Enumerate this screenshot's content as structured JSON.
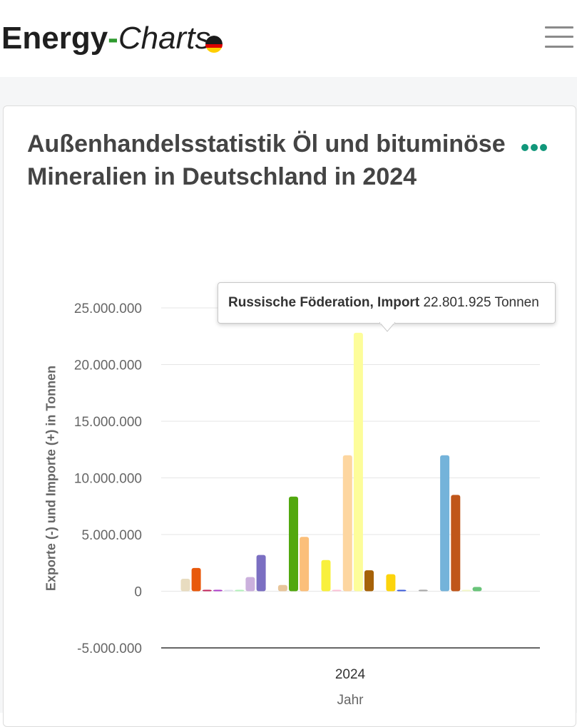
{
  "header": {
    "logo_part1": "Energy",
    "logo_dash": "-",
    "logo_part2": "Charts",
    "flag_icon": "germany-flag-icon",
    "menu_icon": "hamburger-menu-icon"
  },
  "card": {
    "title": "Außenhandelsstatistik Öl und bituminöse Mineralien in Deutschland in 2024",
    "menu_icon": "more-dots-icon",
    "menu_color": "#11977a"
  },
  "tooltip": {
    "series": "Russische Föderation, Import",
    "value": "22.801.925 Tonnen"
  },
  "chart_data": {
    "type": "bar",
    "title": "Außenhandelsstatistik Öl und bituminöse Mineralien in Deutschland in 2024",
    "categories": [
      "2024"
    ],
    "xlabel": "Jahr",
    "ylabel": "Exporte (-) und Importe (+) in Tonnen",
    "ylim": [
      -5000000,
      25000000
    ],
    "yticks": [
      -5000000,
      0,
      5000000,
      10000000,
      15000000,
      20000000,
      25000000
    ],
    "ytick_labels": [
      "-5.000.000",
      "0",
      "5.000.000",
      "10.000.000",
      "15.000.000",
      "20.000.000",
      "25.000.000"
    ],
    "grid": true,
    "highlighted_series_index": 18,
    "series": [
      {
        "value": 1100000,
        "color": "#e8dcc0"
      },
      {
        "value": 2050000,
        "color": "#e8590c"
      },
      {
        "value": 80000,
        "color": "#c2255c"
      },
      {
        "value": 80000,
        "color": "#ae3ec9"
      },
      {
        "value": 30000,
        "color": "#e0e0f0"
      },
      {
        "value": 30000,
        "color": "#b2f2bb"
      },
      {
        "value": 1250000,
        "color": "#cbb0dd"
      },
      {
        "value": 3200000,
        "color": "#7b6fc2"
      },
      {
        "value": null,
        "color": "#ffffff"
      },
      {
        "value": 550000,
        "color": "#e8c59a"
      },
      {
        "value": 8350000,
        "color": "#52a80f"
      },
      {
        "value": 4800000,
        "color": "#fbbf7a"
      },
      {
        "value": null,
        "color": "#ffffff"
      },
      {
        "value": 2750000,
        "color": "#f8f03c"
      },
      {
        "value": 40000,
        "color": "#fcc2d7"
      },
      {
        "value": 12000000,
        "color": "#fdd6a0"
      },
      {
        "value": 22801925,
        "name": "Russische Föderation, Import",
        "color": "#fdfd9a"
      },
      {
        "value": 1850000,
        "color": "#a66208"
      },
      {
        "value": null,
        "color": "#ffffff"
      },
      {
        "value": 1500000,
        "color": "#fcd40c"
      },
      {
        "value": 80000,
        "color": "#3b5bdb"
      },
      {
        "value": null,
        "color": "#ffffff"
      },
      {
        "value": 130000,
        "color": "#a8a8a8"
      },
      {
        "value": null,
        "color": "#ffffff"
      },
      {
        "value": 12000000,
        "color": "#74b3da"
      },
      {
        "value": 8500000,
        "color": "#c0561a"
      },
      {
        "value": 80000,
        "color": "#f4f9c8"
      },
      {
        "value": 380000,
        "color": "#69c47a"
      }
    ]
  }
}
